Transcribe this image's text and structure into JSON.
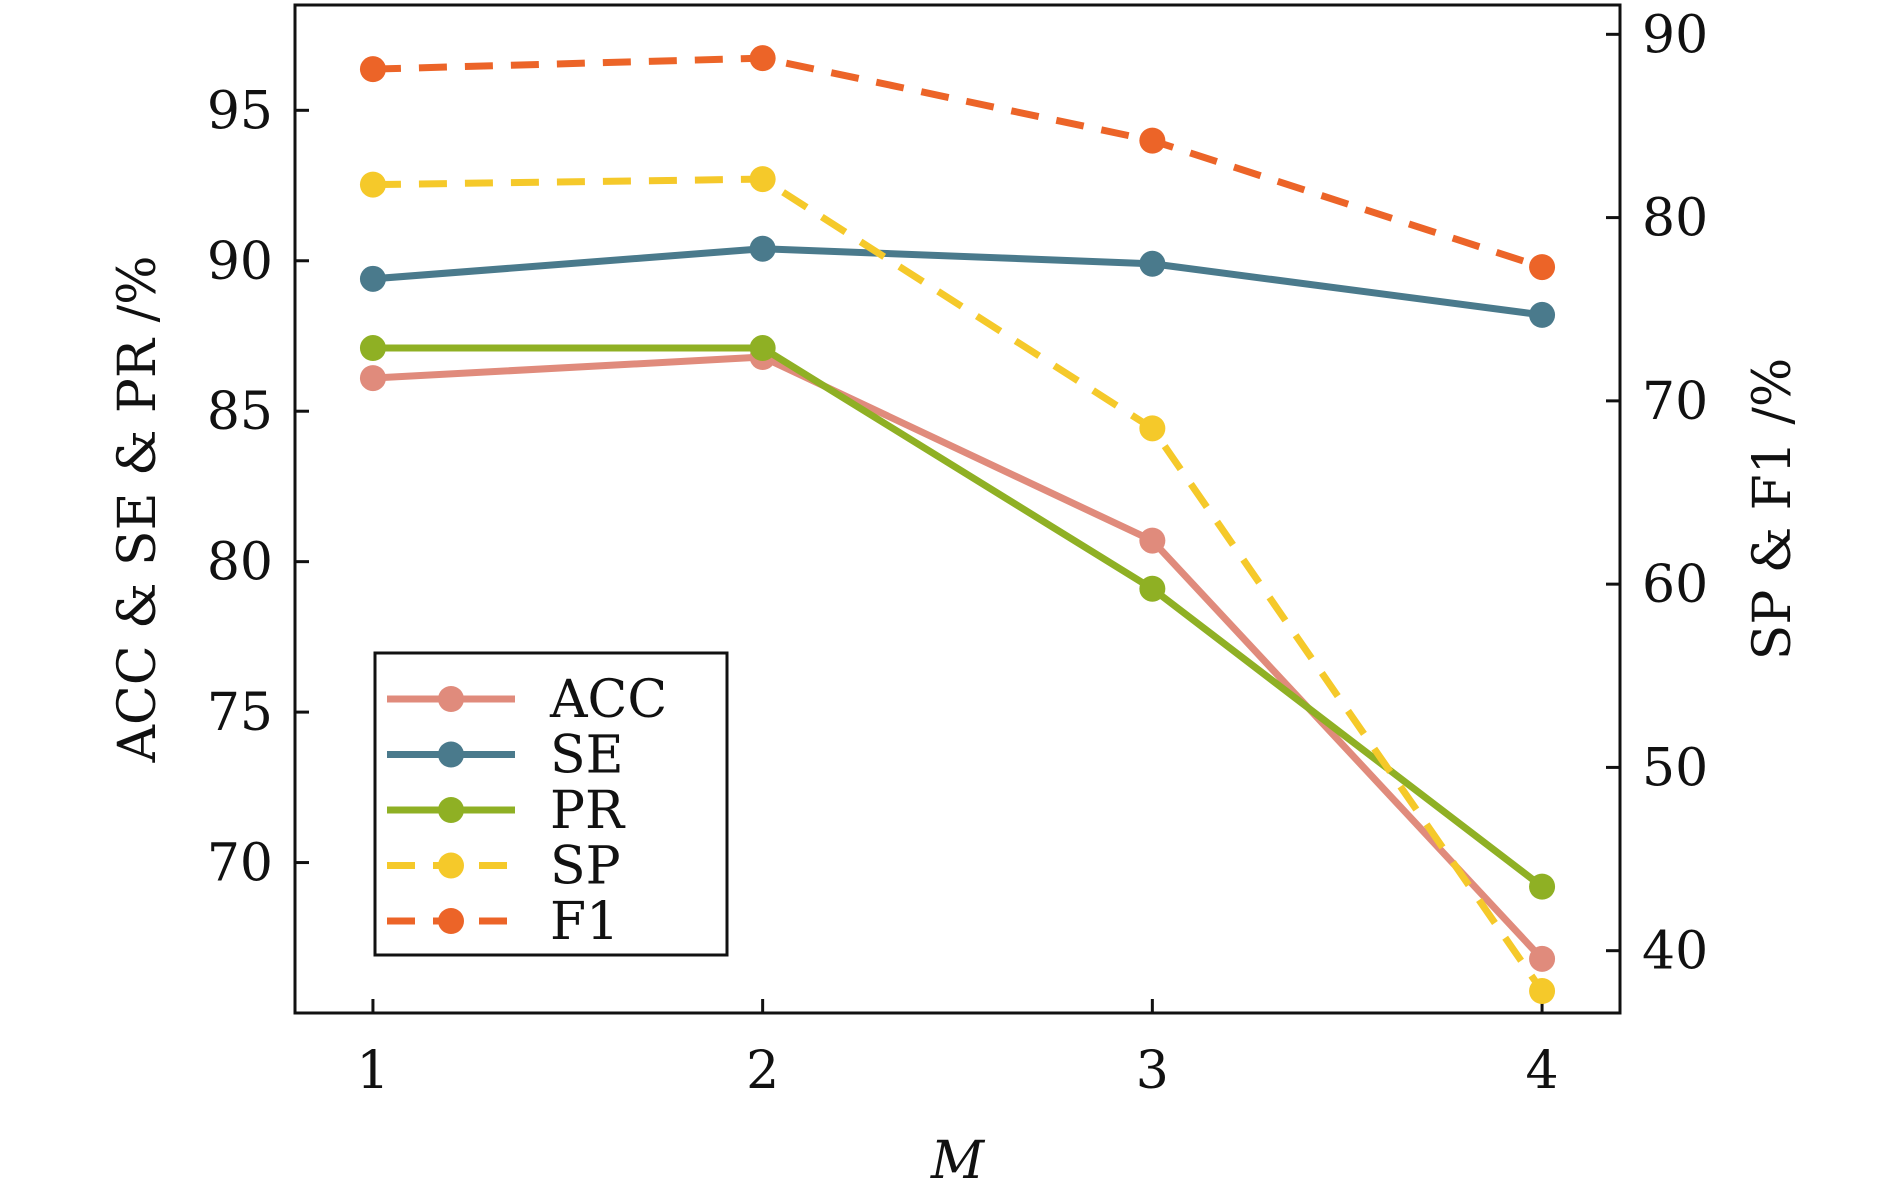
{
  "chart_data": {
    "type": "line",
    "x": [
      1,
      2,
      3,
      4
    ],
    "xlabel": "M",
    "ylabel_left": "ACC & SE & PR /%",
    "ylabel_right": "SP & F1 /%",
    "xticks": [
      "1",
      "2",
      "3",
      "4"
    ],
    "yticks_left": [
      "70",
      "75",
      "80",
      "85",
      "90",
      "95"
    ],
    "yticks_right": [
      "40",
      "50",
      "60",
      "70",
      "80",
      "90"
    ],
    "ylim_left": [
      65,
      98.5
    ],
    "ylim_right": [
      36.6,
      91.6
    ],
    "xlim": [
      0.8,
      4.2
    ],
    "grid": false,
    "legend_position": "lower-left",
    "series": [
      {
        "name": "ACC",
        "axis": "left",
        "style": "solid",
        "color": "#e08b7c",
        "values": [
          86.1,
          86.8,
          80.7,
          66.8
        ]
      },
      {
        "name": "SE",
        "axis": "left",
        "style": "solid",
        "color": "#4a7a8c",
        "values": [
          89.4,
          90.4,
          89.9,
          88.2
        ]
      },
      {
        "name": "PR",
        "axis": "left",
        "style": "solid",
        "color": "#8fb024",
        "values": [
          87.1,
          87.1,
          79.1,
          69.2
        ]
      },
      {
        "name": "SP",
        "axis": "right",
        "style": "dashed",
        "color": "#f5c92a",
        "values": [
          81.8,
          82.1,
          68.5,
          37.8
        ]
      },
      {
        "name": "F1",
        "axis": "right",
        "style": "dashed",
        "color": "#ec6428",
        "values": [
          88.1,
          88.7,
          84.2,
          77.3
        ]
      }
    ]
  }
}
